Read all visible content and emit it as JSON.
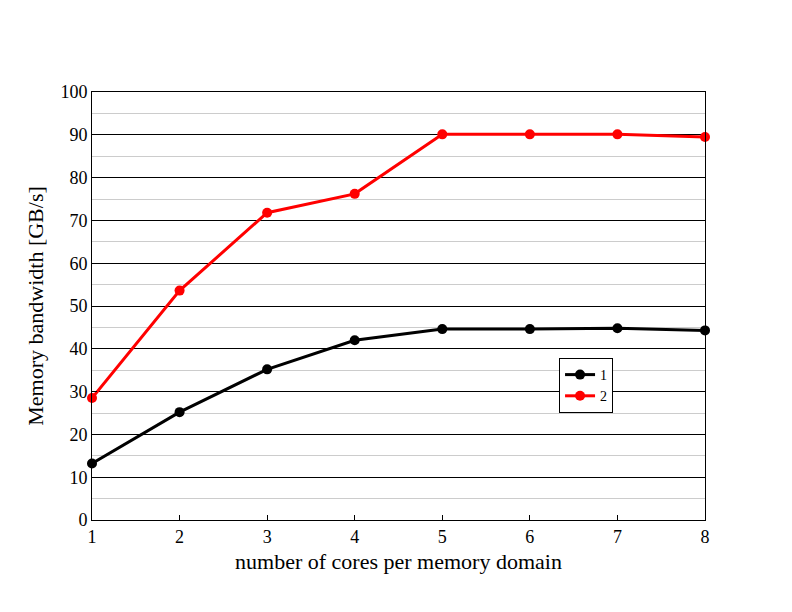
{
  "chart_data": {
    "type": "line",
    "x_label": "number of cores per memory domain",
    "y_label": "Memory bandwidth [GB/s]",
    "x": [
      1,
      2,
      3,
      4,
      5,
      6,
      7,
      8
    ],
    "series": [
      {
        "name": "1",
        "color": "#000000",
        "marker": "circle",
        "line_style": "solid",
        "values": [
          13.2,
          25.2,
          35.2,
          42.0,
          44.6,
          44.6,
          44.8,
          44.3
        ]
      },
      {
        "name": "2",
        "color": "#ff0000",
        "marker": "circle",
        "line_style": "solid",
        "values": [
          28.5,
          53.6,
          71.8,
          76.2,
          90.1,
          90.1,
          90.1,
          89.5
        ]
      }
    ],
    "xlim": [
      1,
      8
    ],
    "xticks": [
      1,
      2,
      3,
      4,
      5,
      6,
      7,
      8
    ],
    "ylim": [
      0,
      100
    ],
    "yticks": [
      0,
      10,
      20,
      30,
      40,
      50,
      60,
      70,
      80,
      90,
      100
    ],
    "grid": true,
    "legend": "lower right"
  }
}
